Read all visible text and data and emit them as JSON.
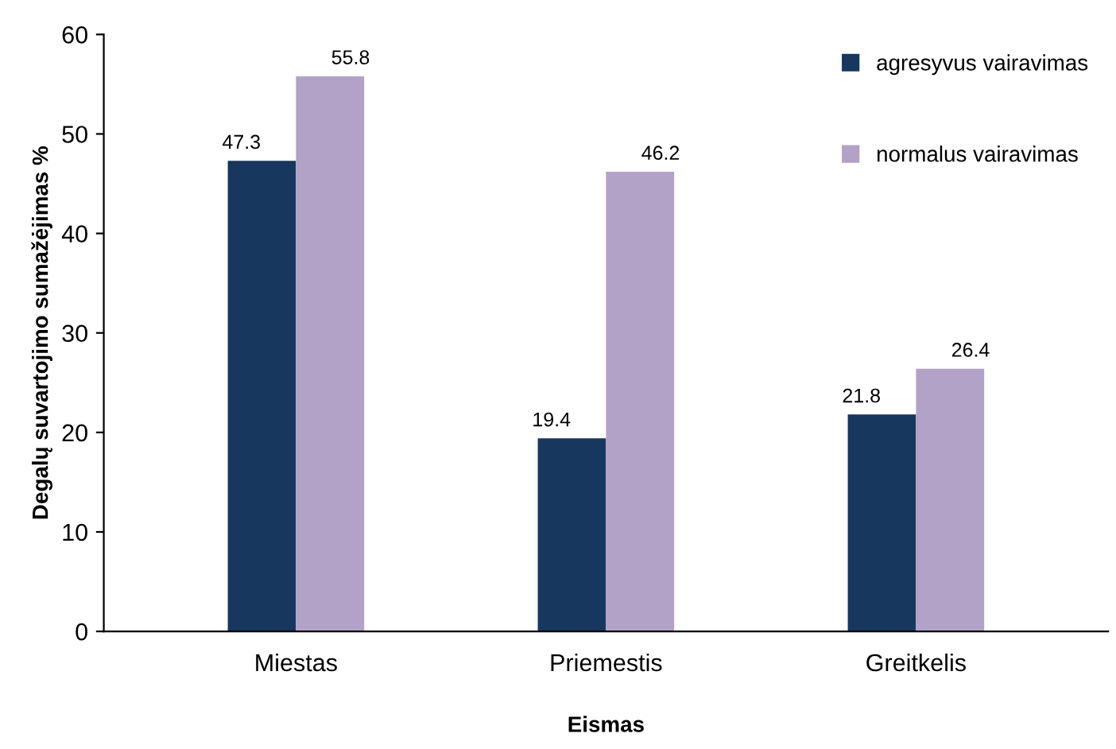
{
  "chart_data": {
    "type": "bar",
    "xlabel": "Eismas",
    "ylabel": "Degalų suvartojimo sumažėjimas %",
    "categories": [
      "Miestas",
      "Priemestis",
      "Greitkelis"
    ],
    "series": [
      {
        "name": "agresyvus vairavimas",
        "color": "#17375e",
        "values": [
          47.3,
          19.4,
          21.8
        ]
      },
      {
        "name": "normalus vairavimas",
        "color": "#b3a2c7",
        "values": [
          55.8,
          46.2,
          26.4
        ]
      }
    ],
    "ylim": [
      0,
      60
    ],
    "yticks": [
      0,
      10,
      20,
      30,
      40,
      50,
      60
    ],
    "grid": false,
    "legend": "top right",
    "data_labels": true
  }
}
